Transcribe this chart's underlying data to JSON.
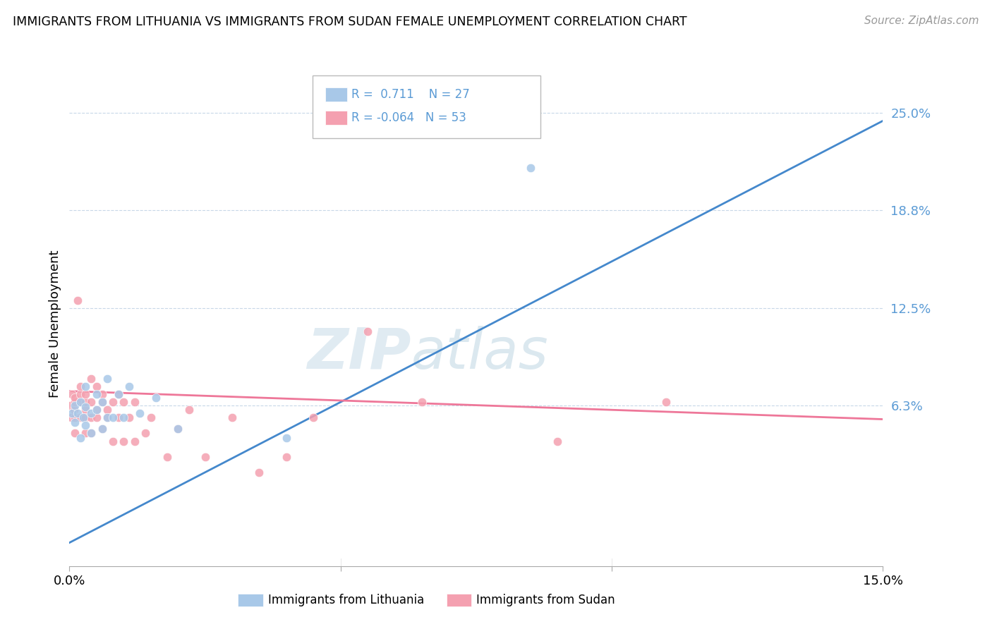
{
  "title": "IMMIGRANTS FROM LITHUANIA VS IMMIGRANTS FROM SUDAN FEMALE UNEMPLOYMENT CORRELATION CHART",
  "source": "Source: ZipAtlas.com",
  "xlabel_blue": "Immigrants from Lithuania",
  "xlabel_pink": "Immigrants from Sudan",
  "ylabel": "Female Unemployment",
  "xlim": [
    0,
    0.15
  ],
  "ylim": [
    -0.04,
    0.27
  ],
  "yticks": [
    0.063,
    0.125,
    0.188,
    0.25
  ],
  "ytick_labels": [
    "6.3%",
    "12.5%",
    "18.8%",
    "25.0%"
  ],
  "r_blue": 0.711,
  "n_blue": 27,
  "r_pink": -0.064,
  "n_pink": 53,
  "blue_color": "#a8c8e8",
  "pink_color": "#f4a0b0",
  "blue_line_color": "#4488cc",
  "pink_line_color": "#ee7799",
  "watermark_zip": "ZIP",
  "watermark_atlas": "atlas",
  "blue_line_x0": 0.0,
  "blue_line_y0": -0.025,
  "blue_line_x1": 0.15,
  "blue_line_y1": 0.245,
  "pink_line_x0": 0.0,
  "pink_line_y0": 0.072,
  "pink_line_x1": 0.15,
  "pink_line_y1": 0.054,
  "blue_scatter_x": [
    0.0005,
    0.001,
    0.001,
    0.0015,
    0.002,
    0.002,
    0.0025,
    0.003,
    0.003,
    0.003,
    0.004,
    0.004,
    0.005,
    0.005,
    0.006,
    0.006,
    0.007,
    0.007,
    0.008,
    0.009,
    0.01,
    0.011,
    0.013,
    0.016,
    0.02,
    0.04,
    0.085
  ],
  "blue_scatter_y": [
    0.058,
    0.063,
    0.052,
    0.058,
    0.042,
    0.065,
    0.055,
    0.05,
    0.062,
    0.075,
    0.045,
    0.058,
    0.06,
    0.07,
    0.048,
    0.065,
    0.055,
    0.08,
    0.055,
    0.07,
    0.055,
    0.075,
    0.058,
    0.068,
    0.048,
    0.042,
    0.215
  ],
  "pink_scatter_x": [
    0.0002,
    0.0004,
    0.0005,
    0.0008,
    0.001,
    0.001,
    0.001,
    0.001,
    0.0015,
    0.002,
    0.002,
    0.002,
    0.002,
    0.003,
    0.003,
    0.003,
    0.003,
    0.003,
    0.004,
    0.004,
    0.004,
    0.004,
    0.005,
    0.005,
    0.005,
    0.006,
    0.006,
    0.006,
    0.007,
    0.007,
    0.008,
    0.008,
    0.009,
    0.009,
    0.01,
    0.01,
    0.011,
    0.012,
    0.012,
    0.014,
    0.015,
    0.018,
    0.02,
    0.022,
    0.025,
    0.03,
    0.035,
    0.04,
    0.045,
    0.055,
    0.065,
    0.09,
    0.11
  ],
  "pink_scatter_y": [
    0.063,
    0.055,
    0.07,
    0.06,
    0.065,
    0.055,
    0.068,
    0.045,
    0.13,
    0.055,
    0.065,
    0.07,
    0.075,
    0.06,
    0.055,
    0.065,
    0.045,
    0.07,
    0.065,
    0.055,
    0.08,
    0.045,
    0.055,
    0.075,
    0.06,
    0.065,
    0.048,
    0.07,
    0.06,
    0.055,
    0.065,
    0.04,
    0.055,
    0.07,
    0.04,
    0.065,
    0.055,
    0.04,
    0.065,
    0.045,
    0.055,
    0.03,
    0.048,
    0.06,
    0.03,
    0.055,
    0.02,
    0.03,
    0.055,
    0.11,
    0.065,
    0.04,
    0.065
  ]
}
